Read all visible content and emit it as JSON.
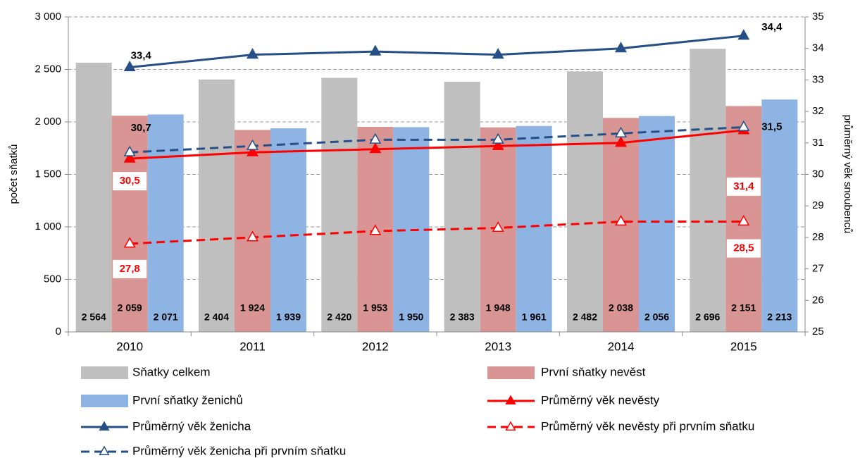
{
  "chart_data": {
    "type": "bar",
    "ylabel": "počet sňatků",
    "y2label": "průměrný věk snoubenců",
    "categories": [
      "2010",
      "2011",
      "2012",
      "2013",
      "2014",
      "2015"
    ],
    "ylim": [
      0,
      3000
    ],
    "yticks": [
      0,
      500,
      {
        "value": 1000,
        "label": "1 000"
      },
      {
        "value": 1500,
        "label": "1 500"
      },
      {
        "value": 2000,
        "label": "2 000"
      },
      {
        "value": 2500,
        "label": "2 500"
      },
      {
        "value": 3000,
        "label": "3 000"
      }
    ],
    "y2lim": [
      25,
      35
    ],
    "y2ticks": [
      25,
      26,
      27,
      28,
      29,
      30,
      31,
      32,
      33,
      34,
      35
    ],
    "grid": true,
    "series": [
      {
        "name": "Sňatky celkem",
        "type": "bar",
        "color": "#bfbfbf",
        "values": [
          2564,
          2404,
          2420,
          2383,
          2482,
          2696
        ],
        "value_labels": [
          "2 564",
          "2 404",
          "2 420",
          "2 383",
          "2 482",
          "2 696"
        ]
      },
      {
        "name": "První sňatky nevěst",
        "type": "bar",
        "color": "#d99594",
        "values": [
          2059,
          1924,
          1953,
          1948,
          2038,
          2151
        ],
        "value_labels": [
          "2 059",
          "1 924",
          "1 953",
          "1 948",
          "2 038",
          "2 151"
        ]
      },
      {
        "name": "První sňatky ženichů",
        "type": "bar",
        "color": "#8db4e2",
        "values": [
          2071,
          1939,
          1950,
          1961,
          2056,
          2213
        ],
        "value_labels": [
          "2 071",
          "1 939",
          "1 950",
          "1 961",
          "2 056",
          "2 213"
        ]
      },
      {
        "name": "Průměrný věk nevěsty",
        "type": "line",
        "axis": "y2",
        "color": "#ff0000",
        "dashed": false,
        "values": [
          30.5,
          30.7,
          30.8,
          30.9,
          31.0,
          31.4
        ],
        "value_labels": [
          "30,5",
          null,
          null,
          null,
          null,
          "31,4"
        ]
      },
      {
        "name": "Průměrný věk ženicha",
        "type": "line",
        "axis": "y2",
        "color": "#254f86",
        "dashed": false,
        "values": [
          33.4,
          33.8,
          33.9,
          33.8,
          34.0,
          34.4
        ],
        "value_labels": [
          "33,4",
          null,
          null,
          null,
          null,
          "34,4"
        ]
      },
      {
        "name": "Průměrný věk nevěsty při prvním sňatku",
        "type": "line",
        "axis": "y2",
        "color": "#ff0000",
        "dashed": true,
        "values": [
          27.8,
          28.0,
          28.2,
          28.3,
          28.5,
          28.5
        ],
        "value_labels": [
          "27,8",
          null,
          null,
          null,
          null,
          "28,5"
        ]
      },
      {
        "name": "Průměrný věk ženicha při prvním sňatku",
        "type": "line",
        "axis": "y2",
        "color": "#254f86",
        "dashed": true,
        "values": [
          30.7,
          30.9,
          31.1,
          31.1,
          31.3,
          31.5
        ],
        "value_labels": [
          "30,7",
          null,
          null,
          null,
          null,
          "31,5"
        ]
      }
    ]
  }
}
